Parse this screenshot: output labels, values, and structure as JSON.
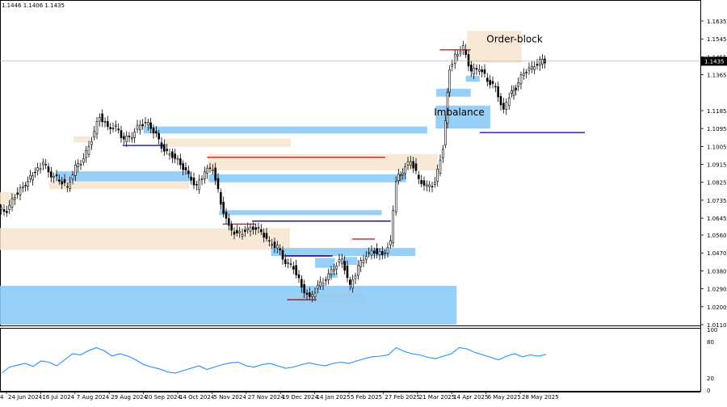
{
  "header": {
    "ohlc_text": "1.1446 1.1406 1.1435"
  },
  "chart_data": {
    "type": "candlestick",
    "symbol_hint": "EURUSD D1",
    "price_axis": {
      "min": 1.011,
      "max": 1.17,
      "ticks": [
        "1.1635",
        "1.1545",
        "1.1455",
        "1.1365",
        "1.1185",
        "1.1095",
        "1.1005",
        "1.0915",
        "1.0825",
        "1.0735",
        "1.0645",
        "1.0560",
        "1.0470",
        "1.0380",
        "1.0290",
        "1.0200",
        "1.0110"
      ],
      "current_price_label": "1.1435",
      "current_price": 1.1435
    },
    "time_axis": {
      "labels": [
        "24 Jun 2024",
        "16 Jul 2024",
        "7 Aug 2024",
        "29 Aug 2024",
        "20 Sep 2024",
        "14 Oct 2024",
        "5 Nov 2024",
        "27 Nov 2024",
        "19 Dec 2024",
        "14 Jan 2025",
        "5 Feb 2025",
        "27 Feb 2025",
        "21 Mar 2025",
        "14 Apr 2025",
        "6 May 2025",
        "28 May 2025"
      ],
      "left_edge_label": "4"
    },
    "price_points": [
      [
        0,
        1.069
      ],
      [
        10,
        1.068
      ],
      [
        20,
        1.076
      ],
      [
        30,
        1.08
      ],
      [
        45,
        1.088
      ],
      [
        55,
        1.092
      ],
      [
        65,
        1.086
      ],
      [
        75,
        1.084
      ],
      [
        85,
        1.08
      ],
      [
        95,
        1.09
      ],
      [
        105,
        1.094
      ],
      [
        115,
        1.104
      ],
      [
        125,
        1.116
      ],
      [
        135,
        1.11
      ],
      [
        145,
        1.11
      ],
      [
        155,
        1.104
      ],
      [
        165,
        1.106
      ],
      [
        175,
        1.112
      ],
      [
        185,
        1.112
      ],
      [
        195,
        1.106
      ],
      [
        205,
        1.098
      ],
      [
        215,
        1.096
      ],
      [
        225,
        1.092
      ],
      [
        235,
        1.086
      ],
      [
        245,
        1.08
      ],
      [
        255,
        1.088
      ],
      [
        265,
        1.09
      ],
      [
        275,
        1.072
      ],
      [
        285,
        1.06
      ],
      [
        295,
        1.056
      ],
      [
        305,
        1.058
      ],
      [
        315,
        1.06
      ],
      [
        325,
        1.058
      ],
      [
        335,
        1.052
      ],
      [
        345,
        1.05
      ],
      [
        355,
        1.042
      ],
      [
        365,
        1.04
      ],
      [
        375,
        1.03
      ],
      [
        385,
        1.024
      ],
      [
        395,
        1.03
      ],
      [
        405,
        1.034
      ],
      [
        415,
        1.04
      ],
      [
        425,
        1.044
      ],
      [
        435,
        1.03
      ],
      [
        445,
        1.04
      ],
      [
        455,
        1.046
      ],
      [
        465,
        1.048
      ],
      [
        475,
        1.046
      ],
      [
        485,
        1.052
      ],
      [
        492,
        1.084
      ],
      [
        500,
        1.088
      ],
      [
        510,
        1.094
      ],
      [
        520,
        1.084
      ],
      [
        530,
        1.08
      ],
      [
        540,
        1.082
      ],
      [
        550,
        1.1
      ],
      [
        558,
        1.14
      ],
      [
        565,
        1.146
      ],
      [
        575,
        1.15
      ],
      [
        585,
        1.138
      ],
      [
        595,
        1.14
      ],
      [
        605,
        1.134
      ],
      [
        615,
        1.13
      ],
      [
        625,
        1.118
      ],
      [
        632,
        1.126
      ],
      [
        640,
        1.13
      ],
      [
        650,
        1.138
      ],
      [
        660,
        1.14
      ],
      [
        670,
        1.143
      ],
      [
        676,
        1.1435
      ]
    ],
    "zones": {
      "order_blocks": [
        {
          "label": "Order-block",
          "y1": 1.1585,
          "y2": 1.1425,
          "x1": 0.667,
          "x2": 0.745
        },
        {
          "y1": 1.0595,
          "y2": 1.0485,
          "x1": 0.0,
          "x2": 0.414
        },
        {
          "y1": 1.0775,
          "y2": 1.0715,
          "x1": 0.0,
          "x2": 0.02
        },
        {
          "y1": 1.0968,
          "y2": 1.0885,
          "x1": 0.297,
          "x2": 0.625
        },
        {
          "y1": 1.0835,
          "y2": 1.079,
          "x1": 0.07,
          "x2": 0.27
        },
        {
          "y1": 1.1045,
          "y2": 1.1002,
          "x1": 0.235,
          "x2": 0.415
        },
        {
          "y1": 1.1055,
          "y2": 1.1025,
          "x1": 0.105,
          "x2": 0.13
        },
        {
          "y1": 1.0268,
          "y2": 1.0215,
          "x1": 0.43,
          "x2": 0.52
        }
      ],
      "imbalances": [
        {
          "label": "Imbalance",
          "y1": 1.121,
          "y2": 1.1095,
          "x1": 0.622,
          "x2": 0.7
        },
        {
          "y1": 1.1105,
          "y2": 1.107,
          "x1": 0.205,
          "x2": 0.61
        },
        {
          "y1": 1.088,
          "y2": 1.083,
          "x1": 0.08,
          "x2": 0.273
        },
        {
          "y1": 1.0865,
          "y2": 1.0825,
          "x1": 0.298,
          "x2": 0.58
        },
        {
          "y1": 1.0685,
          "y2": 1.066,
          "x1": 0.313,
          "x2": 0.545
        },
        {
          "y1": 1.0495,
          "y2": 1.0455,
          "x1": 0.387,
          "x2": 0.593
        },
        {
          "y1": 1.045,
          "y2": 1.041,
          "x1": 0.49,
          "x2": 0.51
        },
        {
          "y1": 1.0445,
          "y2": 1.0395,
          "x1": 0.45,
          "x2": 0.478
        },
        {
          "y1": 1.037,
          "y2": 1.0345,
          "x1": 0.47,
          "x2": 0.482
        },
        {
          "y1": 1.0305,
          "y2": 1.011,
          "x1": 0.0,
          "x2": 0.652
        },
        {
          "y1": 1.136,
          "y2": 1.133,
          "x1": 0.665,
          "x2": 0.685
        },
        {
          "y1": 1.1295,
          "y2": 1.1255,
          "x1": 0.623,
          "x2": 0.672
        }
      ]
    },
    "lines": {
      "red_levels": [
        {
          "y": 1.095,
          "x1": 0.296,
          "x2": 0.55
        },
        {
          "y": 1.149,
          "x1": 0.628,
          "x2": 0.672
        },
        {
          "y": 1.0615,
          "x1": 0.318,
          "x2": 0.365
        },
        {
          "y": 1.0455,
          "x1": 0.405,
          "x2": 0.47
        },
        {
          "y": 1.054,
          "x1": 0.503,
          "x2": 0.535
        },
        {
          "y": 1.0235,
          "x1": 0.41,
          "x2": 0.452
        }
      ],
      "blue_levels": [
        {
          "y": 1.1075,
          "x1": 0.685,
          "x2": 0.835
        },
        {
          "y": 1.063,
          "x1": 0.36,
          "x2": 0.558
        },
        {
          "y": 1.0455,
          "x1": 0.408,
          "x2": 0.475
        },
        {
          "y": 1.101,
          "x1": 0.175,
          "x2": 0.235
        }
      ]
    },
    "oscillator": {
      "levels": [
        "100",
        "80",
        "20",
        "0"
      ],
      "min": 0,
      "max": 100,
      "values": [
        28,
        38,
        41,
        44,
        39,
        48,
        46,
        40,
        50,
        60,
        58,
        65,
        70,
        65,
        56,
        60,
        56,
        50,
        42,
        38,
        35,
        30,
        28,
        32,
        36,
        40,
        34,
        38,
        42,
        45,
        46,
        40,
        38,
        42,
        44,
        40,
        36,
        38,
        42,
        45,
        42,
        40,
        44,
        46,
        44,
        48,
        52,
        55,
        56,
        58,
        70,
        64,
        60,
        58,
        54,
        52,
        56,
        60,
        70,
        68,
        62,
        58,
        54,
        50,
        56,
        60,
        55,
        58,
        56,
        59
      ]
    }
  }
}
